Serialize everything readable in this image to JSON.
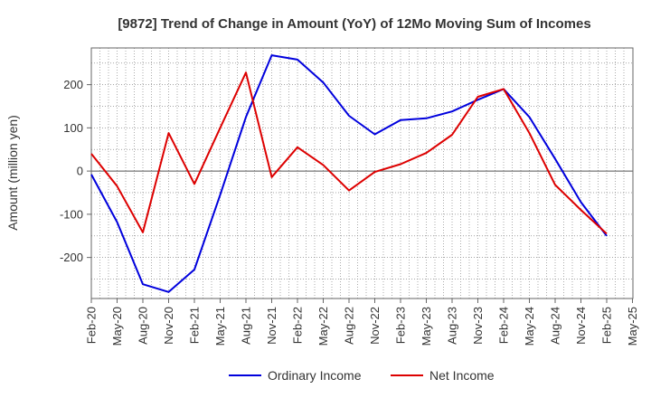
{
  "chart_data": {
    "type": "line",
    "title": "[9872]  Trend of Change in Amount (YoY) of 12Mo Moving Sum of Incomes",
    "xlabel": "",
    "ylabel": "Amount (million yen)",
    "x": [
      "Feb-20",
      "May-20",
      "Aug-20",
      "Nov-20",
      "Feb-21",
      "May-21",
      "Aug-21",
      "Nov-21",
      "Feb-22",
      "May-22",
      "Aug-22",
      "Nov-22",
      "Feb-23",
      "May-23",
      "Aug-23",
      "Nov-23",
      "Feb-24",
      "May-24",
      "Aug-24",
      "Nov-24",
      "Feb-25",
      "May-25"
    ],
    "ylim": [
      -295,
      285
    ],
    "yticks": [
      -200,
      -100,
      0,
      100,
      200
    ],
    "grid": true,
    "legend_position": "bottom",
    "series": [
      {
        "name": "Ordinary Income",
        "color": "#0000dd",
        "values": [
          -8,
          -118,
          -262,
          -280,
          -228,
          -55,
          125,
          268,
          258,
          205,
          128,
          85,
          118,
          122,
          138,
          165,
          190,
          125,
          28,
          -72,
          -150,
          null
        ]
      },
      {
        "name": "Net Income",
        "color": "#dd0000",
        "values": [
          40,
          -35,
          -142,
          88,
          -30,
          100,
          228,
          -14,
          55,
          14,
          -45,
          -2,
          16,
          42,
          84,
          172,
          190,
          88,
          -32,
          -90,
          -145,
          null
        ]
      }
    ]
  }
}
